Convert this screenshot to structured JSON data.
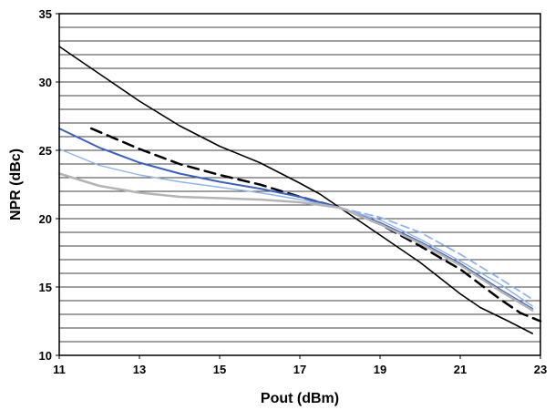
{
  "chart_data": {
    "type": "line",
    "title": "",
    "xlabel": "Pout (dBm)",
    "ylabel": "NPR (dBc)",
    "xlim": [
      11,
      23
    ],
    "ylim": [
      10,
      35
    ],
    "x_ticks": [
      11,
      13,
      15,
      17,
      19,
      21,
      23
    ],
    "y_ticks": [
      10,
      15,
      20,
      25,
      30,
      35
    ],
    "grid": "horizontal lines every 1 dBc",
    "legend": "none",
    "series": [
      {
        "color": "#000000",
        "style": "solid",
        "width": 1.6,
        "points": [
          [
            11,
            32.6
          ],
          [
            12,
            30.6
          ],
          [
            13,
            28.6
          ],
          [
            14,
            26.8
          ],
          [
            15,
            25.3
          ],
          [
            16,
            24.1
          ],
          [
            17,
            22.6
          ],
          [
            17.5,
            21.8
          ],
          [
            18,
            20.8
          ],
          [
            19,
            18.8
          ],
          [
            20,
            16.8
          ],
          [
            21,
            14.5
          ],
          [
            21.5,
            13.5
          ],
          [
            22.2,
            12.5
          ],
          [
            22.8,
            11.6
          ]
        ]
      },
      {
        "color": "#000000",
        "style": "dashed",
        "width": 2.5,
        "points": [
          [
            11.8,
            26.6
          ],
          [
            13,
            25.1
          ],
          [
            14,
            24.0
          ],
          [
            15,
            23.2
          ],
          [
            16,
            22.5
          ],
          [
            17,
            21.6
          ],
          [
            18,
            20.8
          ],
          [
            19,
            19.6
          ],
          [
            20,
            18.0
          ],
          [
            21,
            16.3
          ],
          [
            22,
            14.1
          ],
          [
            22.5,
            13.1
          ],
          [
            23,
            12.5
          ]
        ]
      },
      {
        "color": "#3a5fc8",
        "style": "solid",
        "width": 2,
        "points": [
          [
            11,
            26.6
          ],
          [
            12,
            25.2
          ],
          [
            13,
            24.1
          ],
          [
            14,
            23.3
          ],
          [
            15,
            22.7
          ],
          [
            16,
            22.2
          ],
          [
            17,
            21.6
          ],
          [
            18,
            20.8
          ],
          [
            19,
            19.7
          ],
          [
            20,
            18.3
          ],
          [
            21,
            16.7
          ],
          [
            22,
            14.8
          ],
          [
            22.8,
            13.4
          ]
        ]
      },
      {
        "color": "#8fb4ee",
        "style": "solid",
        "width": 1.4,
        "points": [
          [
            11,
            25.1
          ],
          [
            12,
            23.9
          ],
          [
            13,
            23.2
          ],
          [
            14,
            22.7
          ],
          [
            15,
            22.3
          ],
          [
            16,
            21.9
          ],
          [
            17,
            21.4
          ],
          [
            18,
            20.8
          ],
          [
            19,
            19.9
          ],
          [
            20,
            18.5
          ],
          [
            21,
            16.9
          ],
          [
            22,
            15.2
          ],
          [
            22.8,
            13.6
          ]
        ]
      },
      {
        "color": "#8fb4ee",
        "style": "dashed",
        "width": 1.8,
        "points": [
          [
            18,
            20.8
          ],
          [
            19,
            20.1
          ],
          [
            20,
            19.0
          ],
          [
            21,
            17.4
          ],
          [
            22,
            15.6
          ],
          [
            22.8,
            14.1
          ]
        ]
      },
      {
        "color": "#b4b4b4",
        "style": "solid",
        "width": 2.5,
        "points": [
          [
            11,
            23.3
          ],
          [
            12,
            22.4
          ],
          [
            13,
            21.9
          ],
          [
            14,
            21.6
          ],
          [
            15,
            21.5
          ],
          [
            16,
            21.4
          ],
          [
            17,
            21.2
          ],
          [
            18,
            20.8
          ],
          [
            19,
            19.6
          ],
          [
            20,
            18.2
          ],
          [
            21,
            16.6
          ],
          [
            22,
            14.7
          ],
          [
            22.8,
            13.3
          ]
        ]
      }
    ]
  }
}
